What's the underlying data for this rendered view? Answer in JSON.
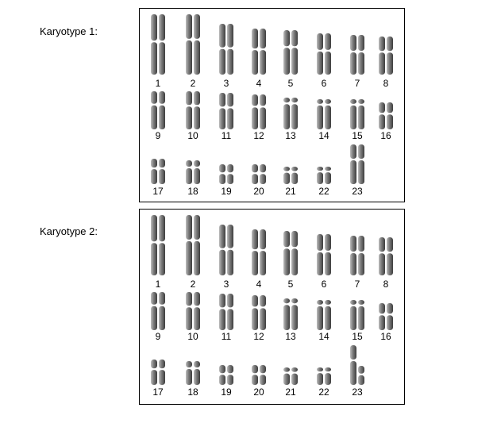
{
  "karyotypes": [
    {
      "label": "Karyotype 1:",
      "chromosomes": [
        {
          "number": "1",
          "pair": "normal"
        },
        {
          "number": "2",
          "pair": "normal"
        },
        {
          "number": "3",
          "pair": "normal"
        },
        {
          "number": "4",
          "pair": "normal"
        },
        {
          "number": "5",
          "pair": "normal"
        },
        {
          "number": "6",
          "pair": "normal"
        },
        {
          "number": "7",
          "pair": "normal"
        },
        {
          "number": "8",
          "pair": "normal"
        },
        {
          "number": "9",
          "pair": "normal"
        },
        {
          "number": "10",
          "pair": "normal"
        },
        {
          "number": "11",
          "pair": "normal"
        },
        {
          "number": "12",
          "pair": "normal"
        },
        {
          "number": "13",
          "pair": "normal"
        },
        {
          "number": "14",
          "pair": "normal"
        },
        {
          "number": "15",
          "pair": "normal"
        },
        {
          "number": "16",
          "pair": "normal"
        },
        {
          "number": "17",
          "pair": "normal"
        },
        {
          "number": "18",
          "pair": "normal"
        },
        {
          "number": "19",
          "pair": "normal"
        },
        {
          "number": "20",
          "pair": "normal"
        },
        {
          "number": "21",
          "pair": "normal"
        },
        {
          "number": "22",
          "pair": "normal"
        },
        {
          "number": "23",
          "pair": "XX"
        }
      ]
    },
    {
      "label": "Karyotype 2:",
      "chromosomes": [
        {
          "number": "1",
          "pair": "normal"
        },
        {
          "number": "2",
          "pair": "normal"
        },
        {
          "number": "3",
          "pair": "normal"
        },
        {
          "number": "4",
          "pair": "normal"
        },
        {
          "number": "5",
          "pair": "normal"
        },
        {
          "number": "6",
          "pair": "normal"
        },
        {
          "number": "7",
          "pair": "normal"
        },
        {
          "number": "8",
          "pair": "normal"
        },
        {
          "number": "9",
          "pair": "normal"
        },
        {
          "number": "10",
          "pair": "normal"
        },
        {
          "number": "11",
          "pair": "normal"
        },
        {
          "number": "12",
          "pair": "normal"
        },
        {
          "number": "13",
          "pair": "normal"
        },
        {
          "number": "14",
          "pair": "normal"
        },
        {
          "number": "15",
          "pair": "normal"
        },
        {
          "number": "16",
          "pair": "normal"
        },
        {
          "number": "17",
          "pair": "normal"
        },
        {
          "number": "18",
          "pair": "normal"
        },
        {
          "number": "19",
          "pair": "normal"
        },
        {
          "number": "20",
          "pair": "normal"
        },
        {
          "number": "21",
          "pair": "normal"
        },
        {
          "number": "22",
          "pair": "normal"
        },
        {
          "number": "23",
          "pair": "XY"
        }
      ]
    }
  ],
  "colors": {
    "chromosome_dark": "#4a4a4a",
    "chromosome_light": "#bdbdbd",
    "border": "#000000"
  }
}
